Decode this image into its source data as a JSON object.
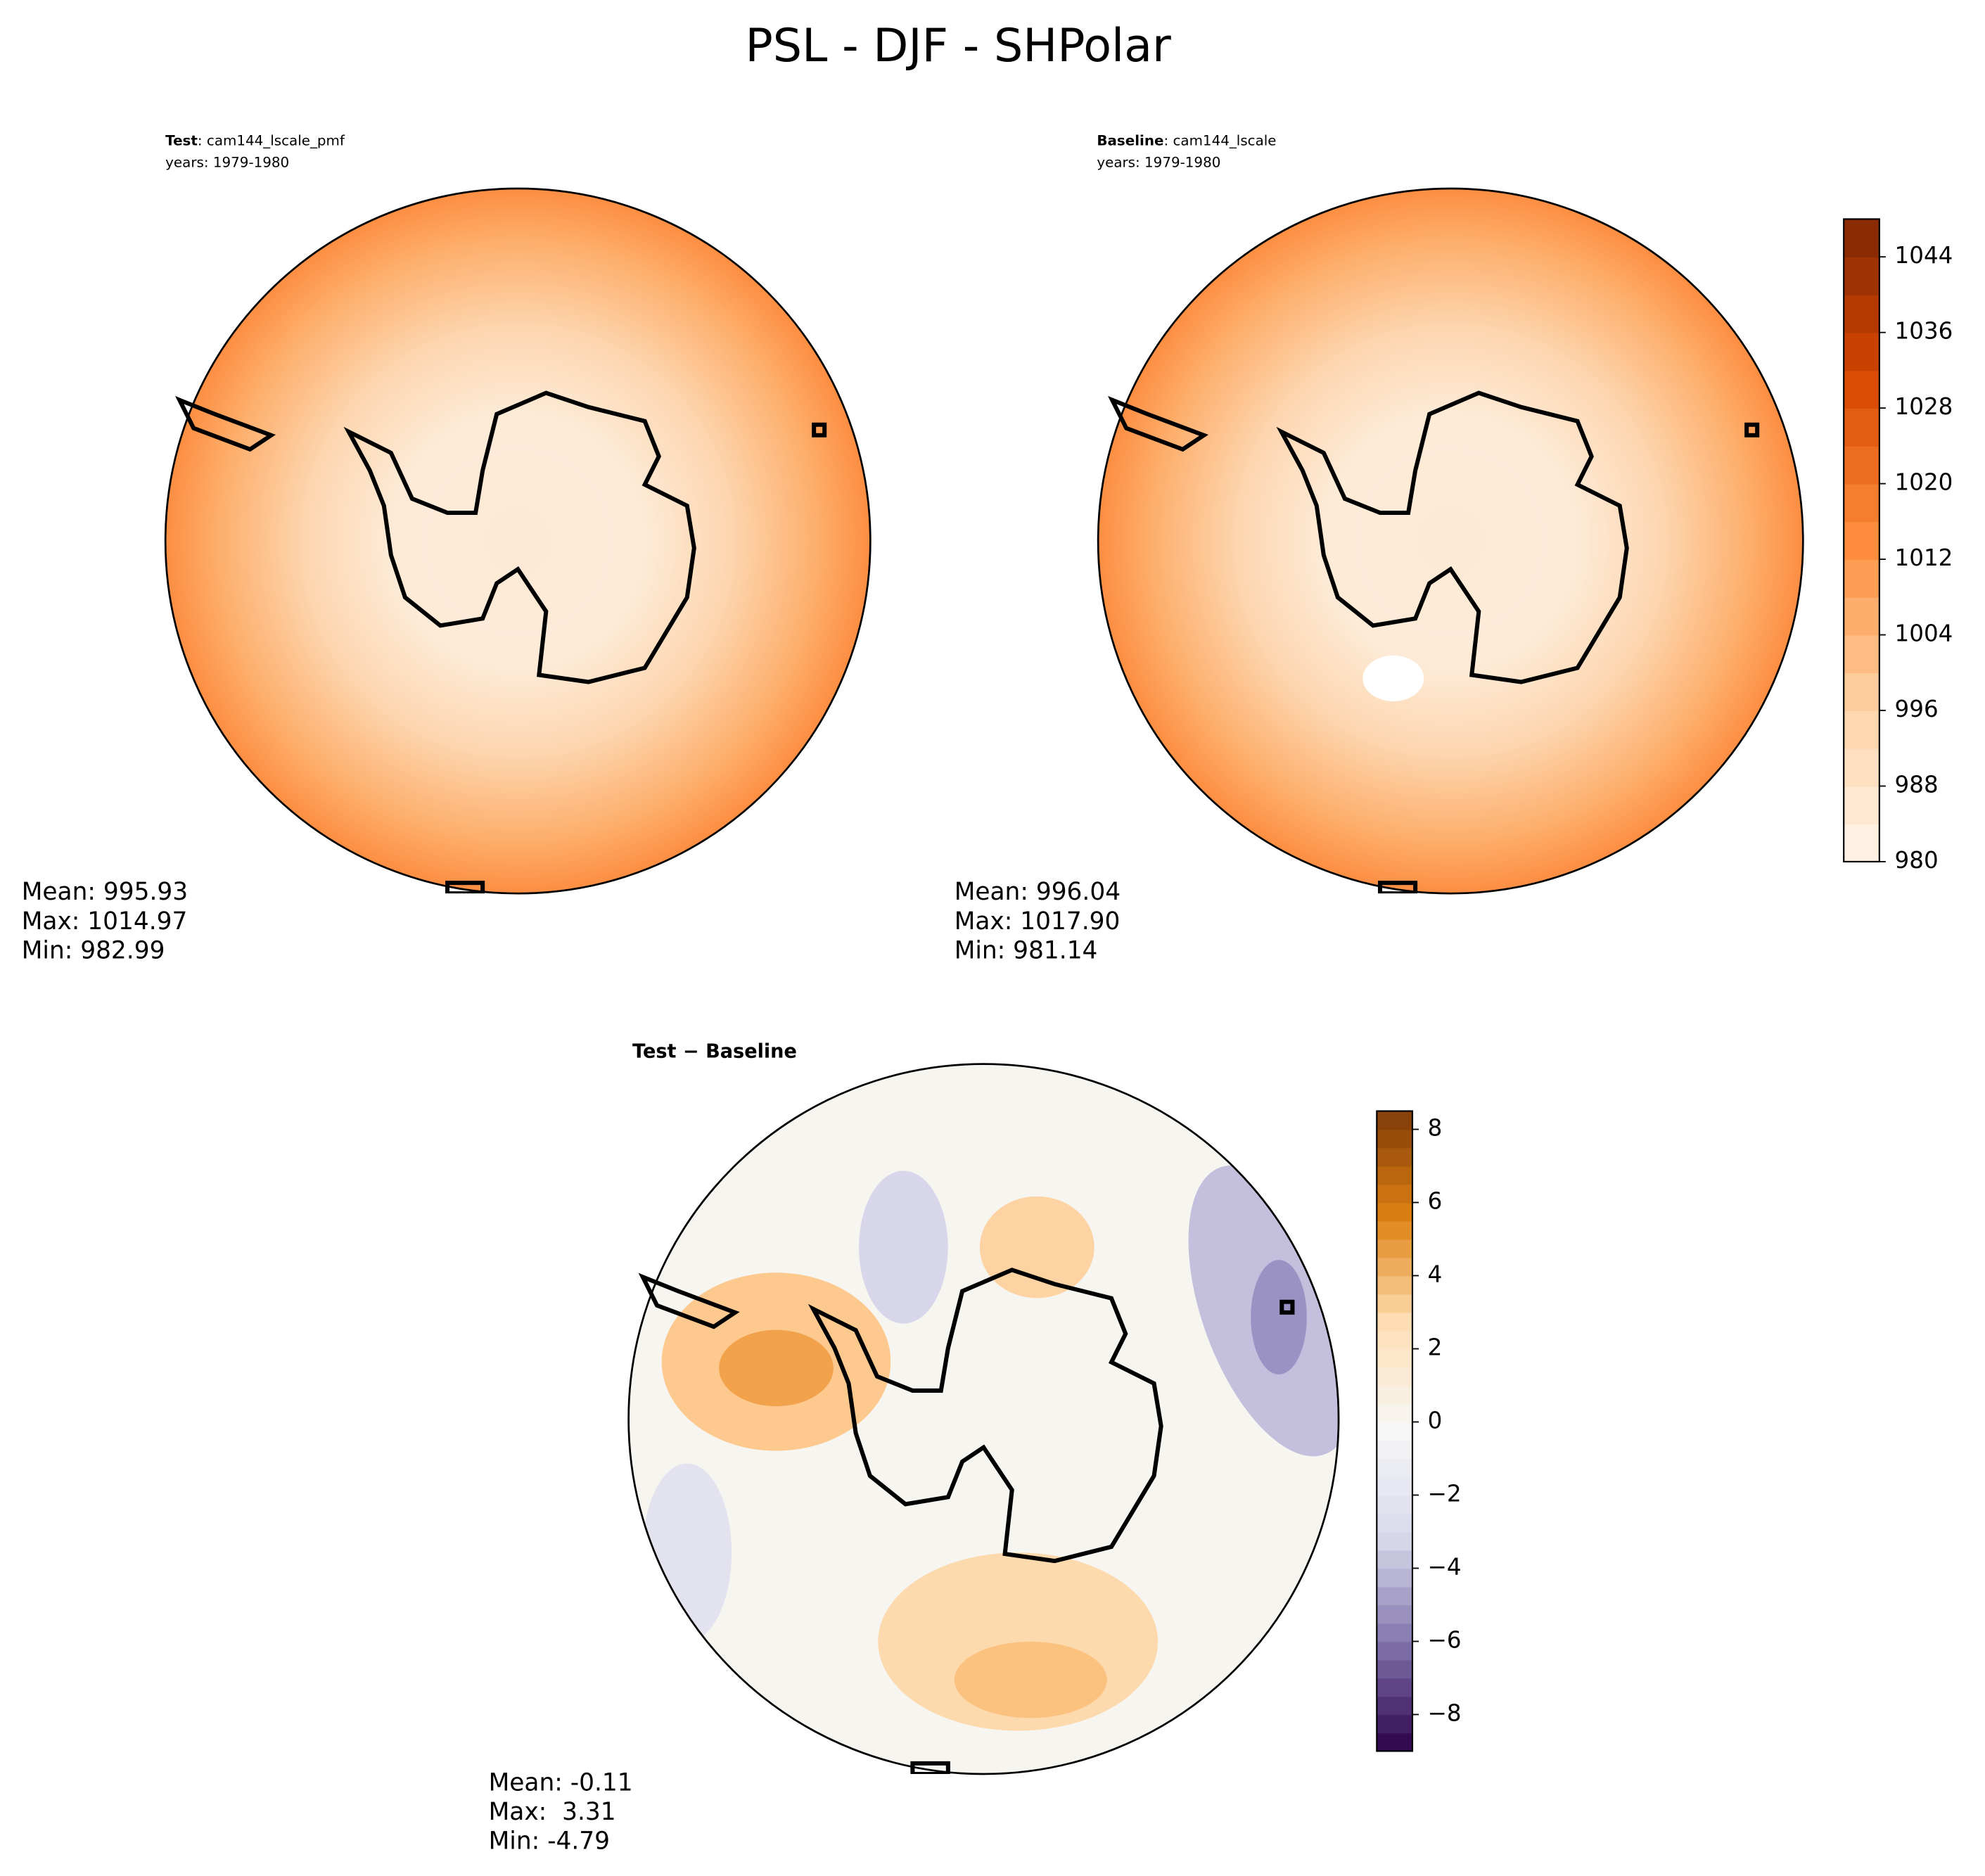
{
  "title": "PSL - DJF - SHPolar",
  "panels": [
    {
      "label_bold": "Test",
      "label": ": cam144_lscale_pmf",
      "years": "years: 1979-1980",
      "stats": [
        "Mean: 995.93",
        "Max: 1014.97",
        "Min: 982.99"
      ]
    },
    {
      "label_bold": "Baseline",
      "label": ": cam144_lscale",
      "years": "years: 1979-1980",
      "stats": [
        "Mean: 996.04",
        "Max: 1017.90",
        "Min: 981.14"
      ]
    },
    {
      "label_bold": "Test − Baseline",
      "stats": [
        "Mean: -0.11",
        "Max:  3.31",
        "Min: -4.79"
      ]
    }
  ],
  "colorbars": [
    {
      "lim": [
        980,
        1048
      ],
      "level_step": 4,
      "ticks": [
        980,
        988,
        996,
        1004,
        1012,
        1020,
        1028,
        1036,
        1044
      ],
      "colors": [
        "#fff5eb",
        "#fdd0a2",
        "#fd8d3c",
        "#d94801",
        "#7f2704"
      ]
    },
    {
      "lim": [
        -9,
        8.5
      ],
      "level_step": 0.5,
      "ticks": [
        {
          "value": -8,
          "label": "−8"
        },
        {
          "value": -6,
          "label": "−6"
        },
        {
          "value": -4,
          "label": "−4"
        },
        {
          "value": -2,
          "label": "−2"
        },
        0,
        2,
        4,
        6,
        8
      ],
      "colors": [
        "#2d004b",
        "#8073ac",
        "#d8daeb",
        "#f7f7f7",
        "#fee0b6",
        "#e08214",
        "#7f3b08"
      ]
    }
  ]
}
